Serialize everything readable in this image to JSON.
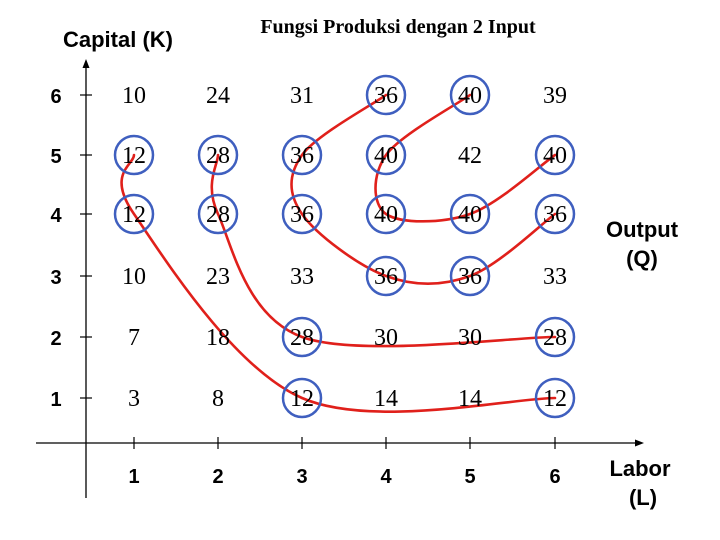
{
  "title": "Fungsi Produksi dengan 2 Input",
  "y_axis_title": "Capital (K)",
  "x_axis_title": [
    "Labor",
    "(L)"
  ],
  "z_label": [
    "Output",
    "(Q)"
  ],
  "colors": {
    "ring": "#3f5fbf",
    "isoquant": "#e0201b",
    "axis": "#000000"
  },
  "chart_data": {
    "type": "table",
    "title": "Fungsi Produksi dengan 2 Input",
    "xlabel": "Labor (L)",
    "ylabel": "Capital (K)",
    "value_label": "Output (Q)",
    "x": [
      1,
      2,
      3,
      4,
      5,
      6
    ],
    "y": [
      1,
      2,
      3,
      4,
      5,
      6
    ],
    "grid": false,
    "rows": [
      {
        "K": 6,
        "Q": [
          10,
          24,
          31,
          36,
          40,
          39
        ]
      },
      {
        "K": 5,
        "Q": [
          12,
          28,
          36,
          40,
          42,
          40
        ]
      },
      {
        "K": 4,
        "Q": [
          12,
          28,
          36,
          40,
          40,
          36
        ]
      },
      {
        "K": 3,
        "Q": [
          10,
          23,
          33,
          36,
          36,
          33
        ]
      },
      {
        "K": 2,
        "Q": [
          7,
          18,
          28,
          30,
          30,
          28
        ]
      },
      {
        "K": 1,
        "Q": [
          3,
          8,
          12,
          14,
          14,
          12
        ]
      }
    ],
    "circled": [
      [
        4,
        6
      ],
      [
        5,
        6
      ],
      [
        1,
        5
      ],
      [
        2,
        5
      ],
      [
        3,
        5
      ],
      [
        4,
        5
      ],
      [
        6,
        5
      ],
      [
        1,
        4
      ],
      [
        2,
        4
      ],
      [
        3,
        4
      ],
      [
        4,
        4
      ],
      [
        5,
        4
      ],
      [
        6,
        4
      ],
      [
        4,
        3
      ],
      [
        5,
        3
      ],
      [
        3,
        2
      ],
      [
        6,
        2
      ],
      [
        3,
        1
      ],
      [
        6,
        1
      ]
    ],
    "isoquants": [
      {
        "output": 12,
        "points": [
          [
            1,
            5
          ],
          [
            1,
            4
          ],
          [
            3,
            1
          ],
          [
            6,
            1
          ]
        ]
      },
      {
        "output": 28,
        "points": [
          [
            2,
            5
          ],
          [
            2,
            4
          ],
          [
            3,
            2
          ],
          [
            6,
            2
          ]
        ]
      },
      {
        "output": 36,
        "points": [
          [
            4,
            6
          ],
          [
            3,
            5
          ],
          [
            3,
            4
          ],
          [
            4,
            3
          ],
          [
            5,
            3
          ],
          [
            6,
            4
          ]
        ]
      },
      {
        "output": 40,
        "points": [
          [
            5,
            6
          ],
          [
            4,
            5
          ],
          [
            4,
            4
          ],
          [
            5,
            4
          ],
          [
            6,
            5
          ]
        ]
      }
    ]
  }
}
